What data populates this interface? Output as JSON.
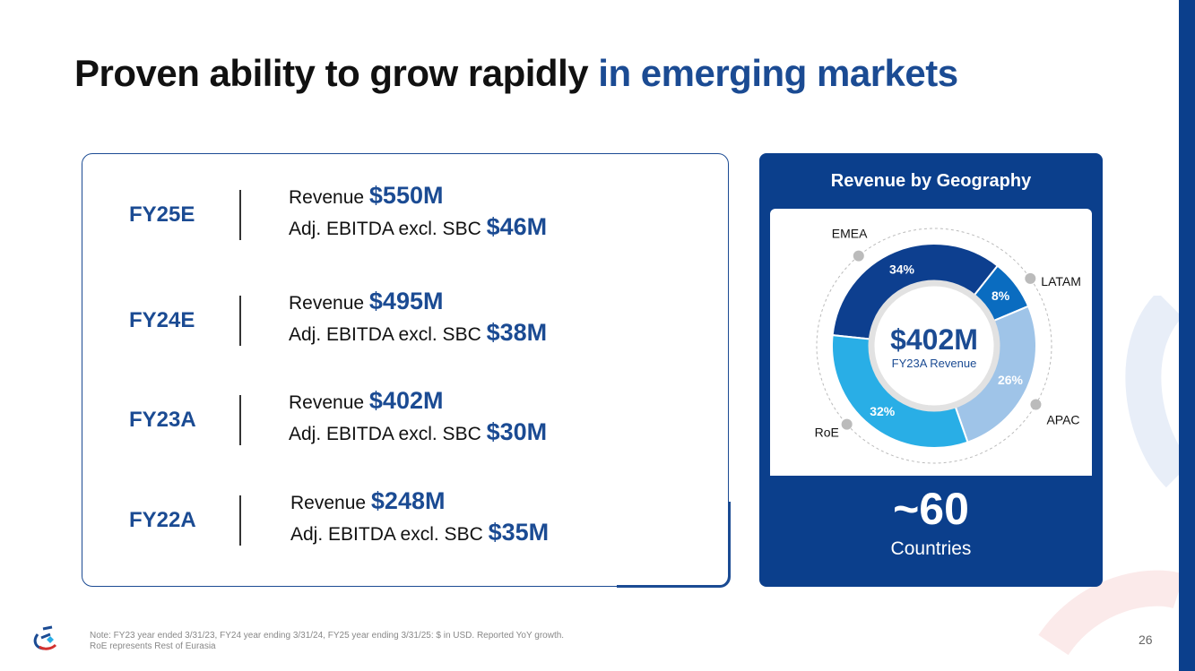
{
  "title": {
    "main": "Proven ability to grow rapidly",
    "highlight": "in emerging markets"
  },
  "rows": [
    {
      "fy": "FY25E",
      "rev_label": "Revenue",
      "rev": "$550M",
      "ebitda_label": "Adj. EBITDA excl. SBC",
      "ebitda": "$46M"
    },
    {
      "fy": "FY24E",
      "rev_label": "Revenue",
      "rev": "$495M",
      "ebitda_label": "Adj. EBITDA excl. SBC",
      "ebitda": "$38M"
    },
    {
      "fy": "FY23A",
      "rev_label": "Revenue",
      "rev": "$402M",
      "ebitda_label": "Adj. EBITDA excl. SBC",
      "ebitda": "$30M"
    },
    {
      "fy": "FY22A",
      "rev_label": "Revenue",
      "rev": "$248M",
      "ebitda_label": "Adj. EBITDA excl. SBC",
      "ebitda": "$35M"
    }
  ],
  "geo": {
    "title": "Revenue by Geography",
    "center_value": "$402M",
    "center_label": "FY23A Revenue",
    "count": "~60",
    "count_label": "Countries"
  },
  "chart_data": {
    "type": "pie",
    "title": "Revenue by Geography",
    "categories": [
      "EMEA",
      "LATAM",
      "APAC",
      "RoE"
    ],
    "values": [
      34,
      8,
      26,
      32
    ],
    "labels": [
      "34%",
      "8%",
      "26%",
      "32%"
    ],
    "colors": [
      "#0d3f8f",
      "#0a6cc0",
      "#9fc4e8",
      "#29aee6"
    ]
  },
  "footer": {
    "note_line1": "Note:  FY23 year ended 3/31/23, FY24 year ending 3/31/24, FY25 year ending 3/31/25: $ in USD. Reported YoY growth.",
    "note_line2": "RoE represents Rest of Eurasia",
    "page": "26"
  }
}
